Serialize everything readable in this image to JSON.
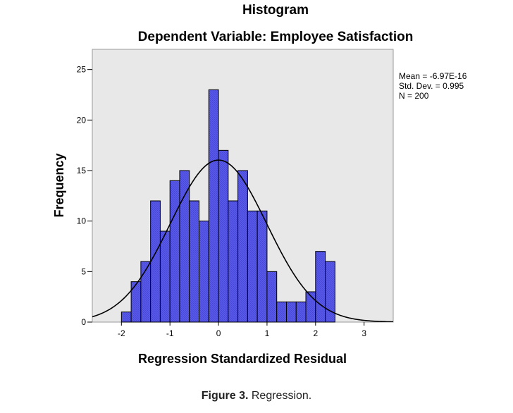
{
  "chart_data": {
    "type": "bar",
    "title": "Histogram",
    "subtitle": "Dependent Variable: Employee Satisfaction",
    "xlabel": "Regression Standardized Residual",
    "ylabel": "Frequency",
    "xlim": [
      -2.6,
      3.6
    ],
    "ylim": [
      0,
      27
    ],
    "x_ticks": [
      -2,
      -1,
      0,
      1,
      2,
      3
    ],
    "y_ticks": [
      0,
      5,
      10,
      15,
      20,
      25
    ],
    "bin_width": 0.2,
    "bins": [
      {
        "x": -2.0,
        "value": 1
      },
      {
        "x": -1.8,
        "value": 4
      },
      {
        "x": -1.6,
        "value": 6
      },
      {
        "x": -1.4,
        "value": 12
      },
      {
        "x": -1.2,
        "value": 9
      },
      {
        "x": -1.0,
        "value": 14
      },
      {
        "x": -0.8,
        "value": 15
      },
      {
        "x": -0.6,
        "value": 12
      },
      {
        "x": -0.4,
        "value": 10
      },
      {
        "x": -0.2,
        "value": 23
      },
      {
        "x": 0.0,
        "value": 17
      },
      {
        "x": 0.2,
        "value": 12
      },
      {
        "x": 0.4,
        "value": 15
      },
      {
        "x": 0.6,
        "value": 11
      },
      {
        "x": 0.8,
        "value": 11
      },
      {
        "x": 1.0,
        "value": 5
      },
      {
        "x": 1.2,
        "value": 2
      },
      {
        "x": 1.4,
        "value": 2
      },
      {
        "x": 1.6,
        "value": 2
      },
      {
        "x": 1.8,
        "value": 3
      },
      {
        "x": 2.0,
        "value": 7
      },
      {
        "x": 2.2,
        "value": 6
      }
    ],
    "normal_curve": {
      "mean": 0,
      "sd": 0.995,
      "n": 200
    },
    "stats": [
      "Mean = -6.97E-16",
      "Std. Dev. = 0.995",
      "N = 200"
    ],
    "colors": {
      "bar": "#5a5ae8",
      "plot_bg": "#e8e8e8",
      "curve": "#000000"
    },
    "grid": false,
    "stats_placement": "top-right outside plot"
  },
  "caption": {
    "label": "Figure 3.",
    "text": "Regression."
  }
}
